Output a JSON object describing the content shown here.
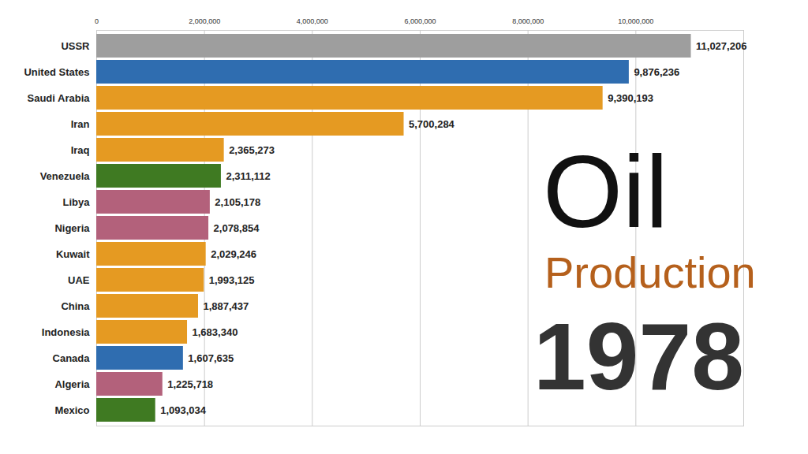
{
  "chart_data": {
    "type": "bar",
    "orientation": "horizontal",
    "title": "Oil Production",
    "annotation": "1978",
    "categories": [
      "USSR",
      "United States",
      "Saudi Arabia",
      "Iran",
      "Iraq",
      "Venezuela",
      "Libya",
      "Nigeria",
      "Kuwait",
      "UAE",
      "China",
      "Indonesia",
      "Canada",
      "Algeria",
      "Mexico"
    ],
    "values": [
      11027206,
      9876236,
      9390193,
      5700284,
      2365273,
      2311112,
      2105178,
      2078854,
      2029246,
      1993125,
      1887437,
      1683340,
      1607635,
      1225718,
      1093034
    ],
    "value_labels": [
      "11,027,206",
      "9,876,236",
      "9,390,193",
      "5,700,284",
      "2,365,273",
      "2,311,112",
      "2,105,178",
      "2,078,854",
      "2,029,246",
      "1,993,125",
      "1,887,437",
      "1,683,340",
      "1,607,635",
      "1,225,718",
      "1,093,034"
    ],
    "colors": [
      "#9e9e9e",
      "#2f6db0",
      "#e59a22",
      "#e59a22",
      "#e59a22",
      "#3f7a22",
      "#b3617b",
      "#b3617b",
      "#e59a22",
      "#e59a22",
      "#e59a22",
      "#e59a22",
      "#2f6db0",
      "#b3617b",
      "#3f7a22"
    ],
    "xlim": [
      0,
      12000000
    ],
    "xticks": [
      0,
      {
        "value": 2000000,
        "label": "2,000,000"
      },
      {
        "value": 4000000,
        "label": "4,000,000"
      },
      {
        "value": 6000000,
        "label": "6,000,000"
      },
      {
        "value": 8000000,
        "label": "8,000,000"
      },
      {
        "value": 10000000,
        "label": "10,000,000"
      }
    ],
    "grid": true,
    "data_labels": true
  }
}
